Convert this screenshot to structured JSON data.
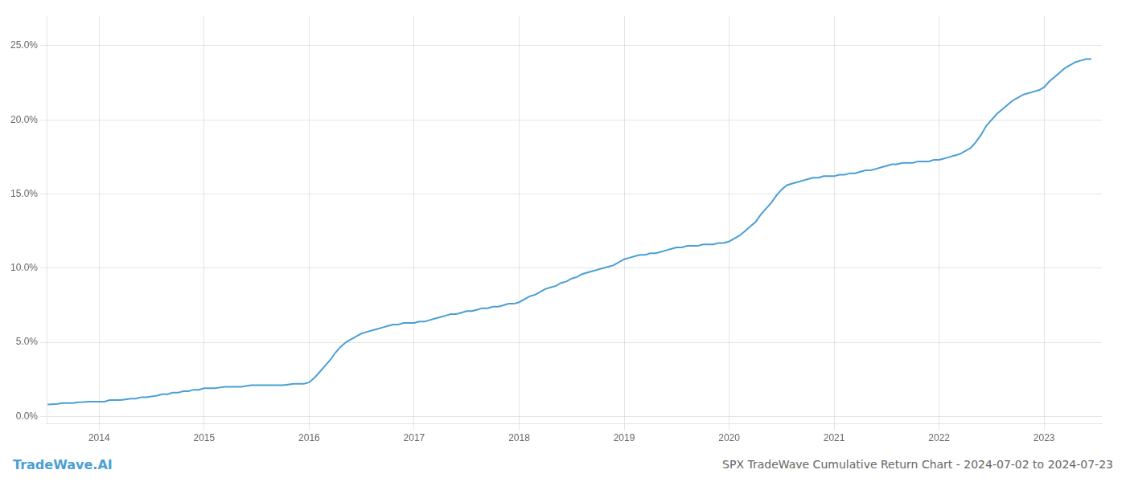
{
  "chart_data": {
    "type": "line",
    "title": "SPX TradeWave Cumulative Return Chart - 2024-07-02 to 2024-07-23",
    "annotations": [
      "TradeWave.AI"
    ],
    "color": "#4a9fd4",
    "marker": "none",
    "grid": true,
    "xlim": [
      2013.5,
      2023.55
    ],
    "ylim": [
      -0.005,
      0.27
    ],
    "xticks": [
      2014,
      2015,
      2016,
      2017,
      2018,
      2019,
      2020,
      2021,
      2022,
      2023
    ],
    "yticks": [
      {
        "value": 0,
        "label": "0.0%"
      },
      {
        "value": 0.05,
        "label": "5.0%"
      },
      {
        "value": 0.1,
        "label": "10.0%"
      },
      {
        "value": 0.15,
        "label": "15.0%"
      },
      {
        "value": 0.2,
        "label": "20.0%"
      },
      {
        "value": 0.25,
        "label": "25.0%"
      }
    ],
    "x": [
      2013.51,
      2013.55,
      2013.6,
      2013.65,
      2013.7,
      2013.75,
      2013.8,
      2013.85,
      2013.9,
      2013.95,
      2014.0,
      2014.05,
      2014.1,
      2014.15,
      2014.2,
      2014.25,
      2014.3,
      2014.35,
      2014.4,
      2014.45,
      2014.5,
      2014.55,
      2014.6,
      2014.65,
      2014.7,
      2014.75,
      2014.8,
      2014.85,
      2014.9,
      2014.95,
      2015.0,
      2015.05,
      2015.1,
      2015.15,
      2015.2,
      2015.25,
      2015.3,
      2015.35,
      2015.4,
      2015.45,
      2015.5,
      2015.55,
      2015.6,
      2015.65,
      2015.7,
      2015.75,
      2015.8,
      2015.85,
      2015.9,
      2015.95,
      2016.0,
      2016.05,
      2016.1,
      2016.15,
      2016.2,
      2016.25,
      2016.3,
      2016.35,
      2016.4,
      2016.45,
      2016.5,
      2016.55,
      2016.6,
      2016.65,
      2016.7,
      2016.75,
      2016.8,
      2016.85,
      2016.9,
      2016.95,
      2017.0,
      2017.05,
      2017.1,
      2017.15,
      2017.2,
      2017.25,
      2017.3,
      2017.35,
      2017.4,
      2017.45,
      2017.5,
      2017.55,
      2017.6,
      2017.65,
      2017.7,
      2017.75,
      2017.8,
      2017.85,
      2017.9,
      2017.95,
      2018.0,
      2018.05,
      2018.1,
      2018.15,
      2018.2,
      2018.25,
      2018.3,
      2018.35,
      2018.4,
      2018.45,
      2018.5,
      2018.55,
      2018.6,
      2018.65,
      2018.7,
      2018.75,
      2018.8,
      2018.85,
      2018.9,
      2018.95,
      2019.0,
      2019.05,
      2019.1,
      2019.15,
      2019.2,
      2019.25,
      2019.3,
      2019.35,
      2019.4,
      2019.45,
      2019.5,
      2019.55,
      2019.6,
      2019.65,
      2019.7,
      2019.75,
      2019.8,
      2019.85,
      2019.9,
      2019.95,
      2020.0,
      2020.05,
      2020.1,
      2020.15,
      2020.2,
      2020.25,
      2020.3,
      2020.35,
      2020.4,
      2020.45,
      2020.5,
      2020.55,
      2020.6,
      2020.65,
      2020.7,
      2020.75,
      2020.8,
      2020.85,
      2020.9,
      2020.95,
      2021.0,
      2021.05,
      2021.1,
      2021.15,
      2021.2,
      2021.25,
      2021.3,
      2021.35,
      2021.4,
      2021.45,
      2021.5,
      2021.55,
      2021.6,
      2021.65,
      2021.7,
      2021.75,
      2021.8,
      2021.85,
      2021.9,
      2021.95,
      2022.0,
      2022.05,
      2022.1,
      2022.15,
      2022.2,
      2022.25,
      2022.3,
      2022.35,
      2022.4,
      2022.45,
      2022.5,
      2022.55,
      2022.6,
      2022.65,
      2022.7,
      2022.75,
      2022.8,
      2022.85,
      2022.9,
      2022.95,
      2023.0,
      2023.05,
      2023.1,
      2023.15,
      2023.2,
      2023.25,
      2023.3,
      2023.35,
      2023.4,
      2023.45
    ],
    "values": [
      0.008,
      0.0082,
      0.0085,
      0.009,
      0.009,
      0.009,
      0.0095,
      0.0097,
      0.01,
      0.01,
      0.01,
      0.01,
      0.011,
      0.011,
      0.011,
      0.0115,
      0.012,
      0.012,
      0.013,
      0.013,
      0.0135,
      0.014,
      0.015,
      0.015,
      0.016,
      0.016,
      0.017,
      0.017,
      0.018,
      0.018,
      0.019,
      0.019,
      0.019,
      0.0195,
      0.02,
      0.02,
      0.02,
      0.02,
      0.0205,
      0.021,
      0.021,
      0.021,
      0.021,
      0.021,
      0.021,
      0.021,
      0.0215,
      0.022,
      0.022,
      0.022,
      0.023,
      0.026,
      0.03,
      0.034,
      0.038,
      0.043,
      0.047,
      0.05,
      0.052,
      0.054,
      0.056,
      0.057,
      0.058,
      0.059,
      0.06,
      0.061,
      0.062,
      0.062,
      0.063,
      0.063,
      0.063,
      0.064,
      0.064,
      0.065,
      0.066,
      0.067,
      0.068,
      0.069,
      0.069,
      0.07,
      0.071,
      0.071,
      0.072,
      0.073,
      0.073,
      0.074,
      0.074,
      0.075,
      0.076,
      0.076,
      0.077,
      0.079,
      0.081,
      0.082,
      0.084,
      0.086,
      0.087,
      0.088,
      0.09,
      0.091,
      0.093,
      0.094,
      0.096,
      0.097,
      0.098,
      0.099,
      0.1,
      0.101,
      0.102,
      0.104,
      0.106,
      0.107,
      0.108,
      0.109,
      0.109,
      0.11,
      0.11,
      0.111,
      0.112,
      0.113,
      0.114,
      0.114,
      0.115,
      0.115,
      0.115,
      0.116,
      0.116,
      0.116,
      0.117,
      0.117,
      0.118,
      0.12,
      0.122,
      0.125,
      0.128,
      0.131,
      0.136,
      0.14,
      0.144,
      0.149,
      0.153,
      0.156,
      0.157,
      0.158,
      0.159,
      0.16,
      0.161,
      0.161,
      0.162,
      0.162,
      0.162,
      0.163,
      0.163,
      0.164,
      0.164,
      0.165,
      0.166,
      0.166,
      0.167,
      0.168,
      0.169,
      0.17,
      0.17,
      0.171,
      0.171,
      0.171,
      0.172,
      0.172,
      0.172,
      0.173,
      0.173,
      0.174,
      0.175,
      0.176,
      0.177,
      0.179,
      0.181,
      0.185,
      0.19,
      0.196,
      0.2,
      0.204,
      0.207,
      0.21,
      0.213,
      0.215,
      0.217,
      0.218,
      0.219,
      0.22,
      0.222,
      0.226,
      0.229,
      0.232,
      0.235,
      0.237,
      0.239,
      0.24,
      0.241,
      0.241
    ]
  }
}
